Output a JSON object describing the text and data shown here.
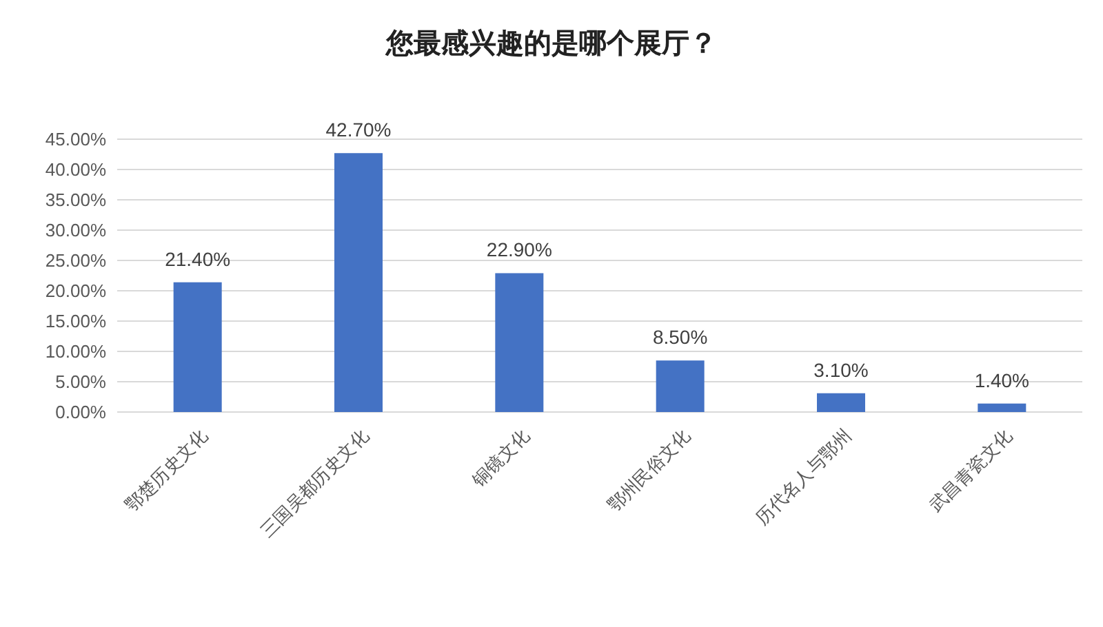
{
  "chart_data": {
    "type": "bar",
    "title": "您最感兴趣的是哪个展厅？",
    "categories": [
      "鄂楚历史文化",
      "三国吴都历史文化",
      "铜镜文化",
      "鄂州民俗文化",
      "历代名人与鄂州",
      "武昌青瓷文化"
    ],
    "values": [
      21.4,
      42.7,
      22.9,
      8.5,
      3.1,
      1.4
    ],
    "value_labels": [
      "21.40%",
      "42.70%",
      "22.90%",
      "8.50%",
      "3.10%",
      "1.40%"
    ],
    "color": "#4472c4",
    "ylim": [
      0,
      45
    ],
    "yticks": [
      {
        "value": 0,
        "label": "0.00%"
      },
      {
        "value": 5,
        "label": "5.00%"
      },
      {
        "value": 10,
        "label": "10.00%"
      },
      {
        "value": 15,
        "label": "15.00%"
      },
      {
        "value": 20,
        "label": "20.00%"
      },
      {
        "value": 25,
        "label": "25.00%"
      },
      {
        "value": 30,
        "label": "30.00%"
      },
      {
        "value": 35,
        "label": "35.00%"
      },
      {
        "value": 40,
        "label": "40.00%"
      },
      {
        "value": 45,
        "label": "45.00%"
      }
    ],
    "grid": "y"
  }
}
